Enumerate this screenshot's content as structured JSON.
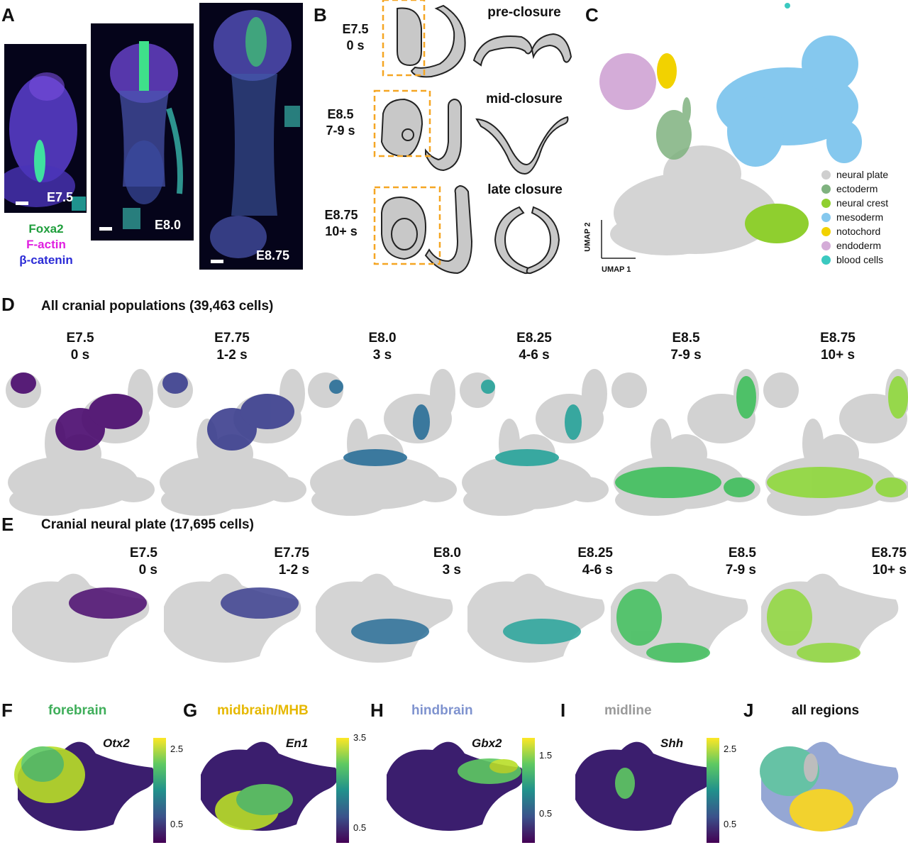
{
  "panel_labels": {
    "A": "A",
    "B": "B",
    "C": "C",
    "D": "D",
    "E": "E",
    "F": "F",
    "G": "G",
    "H": "H",
    "I": "I",
    "J": "J"
  },
  "panel_a": {
    "stage_labels": [
      "E7.5",
      "E8.0",
      "E8.75"
    ],
    "stain_legend": [
      {
        "text": "Foxa2",
        "color": "#1f9e3c"
      },
      {
        "text": "F-actin",
        "color": "#e01fe0"
      },
      {
        "text": "β-catenin",
        "color": "#2b2bd6"
      }
    ]
  },
  "panel_b": {
    "rows": [
      {
        "stage": "E7.5",
        "somites": "0 s",
        "phase": "pre-closure"
      },
      {
        "stage": "E8.5",
        "somites": "7-9 s",
        "phase": "mid-closure"
      },
      {
        "stage": "E8.75",
        "somites": "10+ s",
        "phase": "late closure"
      }
    ],
    "box_color": "#f5a623",
    "shape_fill": "#c8c8c8"
  },
  "panel_c": {
    "axis_x": "UMAP 1",
    "axis_y": "UMAP 2",
    "legend": [
      {
        "name": "neural plate",
        "color": "#cfcfcf"
      },
      {
        "name": "ectoderm",
        "color": "#7fb27f"
      },
      {
        "name": "neural crest",
        "color": "#8fcf2f"
      },
      {
        "name": "mesoderm",
        "color": "#85c8ee"
      },
      {
        "name": "notochord",
        "color": "#f2d200"
      },
      {
        "name": "endoderm",
        "color": "#d4acd8"
      },
      {
        "name": "blood cells",
        "color": "#3bc9c0"
      }
    ]
  },
  "panel_d": {
    "title": "All cranial populations (39,463 cells)",
    "timepoints": [
      {
        "stage": "E7.5",
        "somites": "0 s",
        "color": "#4a0a6e"
      },
      {
        "stage": "E7.75",
        "somites": "1-2 s",
        "color": "#3c3f8f"
      },
      {
        "stage": "E8.0",
        "somites": "3 s",
        "color": "#2a6f98"
      },
      {
        "stage": "E8.25",
        "somites": "4-6 s",
        "color": "#27a39a"
      },
      {
        "stage": "E8.5",
        "somites": "7-9 s",
        "color": "#3fbf5c"
      },
      {
        "stage": "E8.75",
        "somites": "10+ s",
        "color": "#8fd83c"
      }
    ]
  },
  "panel_e": {
    "title": "Cranial neural plate (17,695 cells)",
    "timepoints": [
      {
        "stage": "E7.5",
        "somites": "0 s",
        "color": "#4a0a6e"
      },
      {
        "stage": "E7.75",
        "somites": "1-2 s",
        "color": "#3c3f8f"
      },
      {
        "stage": "E8.0",
        "somites": "3 s",
        "color": "#2a6f98"
      },
      {
        "stage": "E8.25",
        "somites": "4-6 s",
        "color": "#27a39a"
      },
      {
        "stage": "E8.5",
        "somites": "7-9 s",
        "color": "#3fbf5c"
      },
      {
        "stage": "E8.75",
        "somites": "10+ s",
        "color": "#8fd83c"
      }
    ]
  },
  "panel_f": {
    "region": "forebrain",
    "region_color": "#3fae5a",
    "gene": "Otx2",
    "ticks": [
      "2.5",
      "0.5"
    ],
    "ticks_max": 2.8,
    "ticks_values": [
      2.5,
      0.5
    ]
  },
  "panel_g": {
    "region": "midbrain/MHB",
    "region_color": "#e6b800",
    "gene": "En1",
    "ticks": [
      "3.5",
      "0.5"
    ],
    "ticks_max": 3.5,
    "ticks_values": [
      3.5,
      0.5
    ]
  },
  "panel_h": {
    "region": "hindbrain",
    "region_color": "#7f93cf",
    "gene": "Gbx2",
    "ticks": [
      "1.5",
      "0.5"
    ],
    "ticks_max": 1.8,
    "ticks_values": [
      1.5,
      0.5
    ]
  },
  "panel_i": {
    "region": "midline",
    "region_color": "#9a9a9a",
    "gene": "Shh",
    "ticks": [
      "2.5",
      "0.5"
    ],
    "ticks_max": 2.8,
    "ticks_values": [
      2.5,
      0.5
    ]
  },
  "panel_j": {
    "region": "all regions",
    "region_color": "#111111",
    "colors": [
      "#66c2a5",
      "#f2d22e",
      "#95a7d4",
      "#bdbdbd"
    ]
  }
}
